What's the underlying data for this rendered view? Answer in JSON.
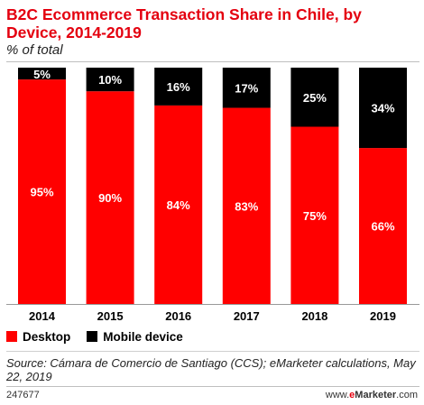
{
  "header": {
    "title": "B2C Ecommerce Transaction Share in Chile, by Device, 2014-2019",
    "subtitle": "% of total"
  },
  "chart_data": {
    "type": "bar",
    "stacked": true,
    "categories": [
      "2014",
      "2015",
      "2016",
      "2017",
      "2018",
      "2019"
    ],
    "series": [
      {
        "name": "Desktop",
        "color": "#ff0000",
        "label_color": "#ffffff",
        "values": [
          95,
          90,
          84,
          83,
          75,
          66
        ]
      },
      {
        "name": "Mobile device",
        "color": "#000000",
        "label_color": "#ffffff",
        "values": [
          5,
          10,
          16,
          17,
          25,
          34
        ]
      }
    ],
    "value_suffix": "%",
    "ylim": [
      0,
      100
    ],
    "legend_position": "bottom-left"
  },
  "legend": {
    "items": [
      {
        "label": "Desktop",
        "color": "#ff0000"
      },
      {
        "label": "Mobile device",
        "color": "#000000"
      }
    ]
  },
  "source": "Source: Cámara de Comercio de Santiago (CCS); eMarketer calculations, May 22, 2019",
  "footer": {
    "id": "247677",
    "brand_prefix": "www.",
    "brand_e": "e",
    "brand_main": "Marketer",
    "brand_suffix": ".com"
  }
}
